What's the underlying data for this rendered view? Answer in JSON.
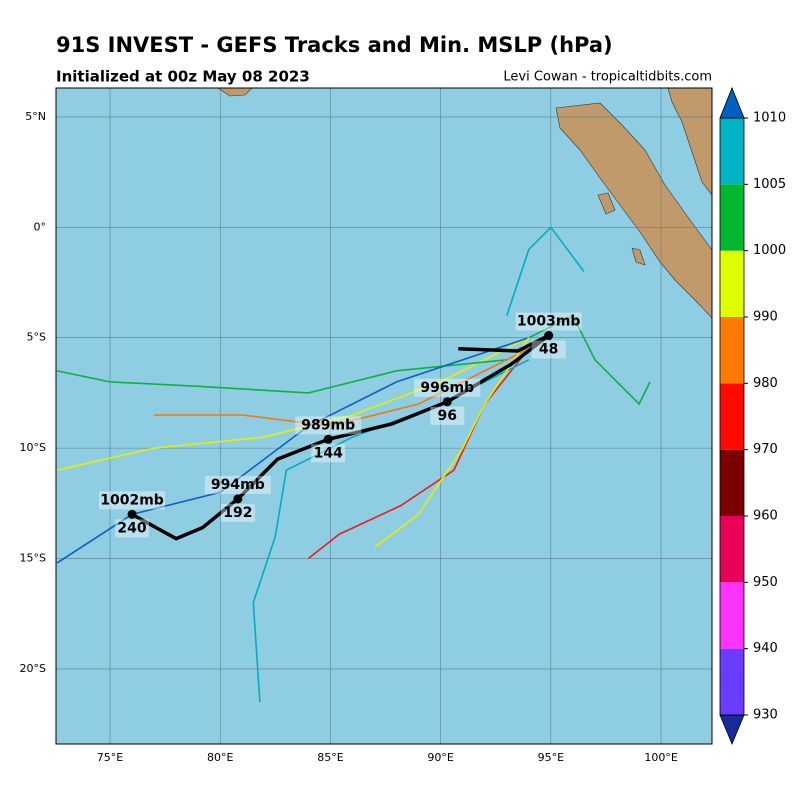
{
  "chart_data": {
    "type": "map",
    "title": "91S INVEST - GEFS Tracks and Min. MSLP (hPa)",
    "subtitle": "Initialized at 00z May 08 2023",
    "credit": "Levi Cowan - tropicaltidbits.com",
    "xlim": [
      72.55,
      102.31
    ],
    "ylim": [
      -23.4,
      6.31
    ],
    "xticks": [
      {
        "value": 75,
        "label": "75°E"
      },
      {
        "value": 80,
        "label": "80°E"
      },
      {
        "value": 85,
        "label": "85°E"
      },
      {
        "value": 90,
        "label": "90°E"
      },
      {
        "value": 95,
        "label": "95°E"
      },
      {
        "value": 100,
        "label": "100°E"
      }
    ],
    "yticks": [
      {
        "value": 5,
        "label": "5°N"
      },
      {
        "value": 0,
        "label": "0°"
      },
      {
        "value": -5,
        "label": "5°S"
      },
      {
        "value": -10,
        "label": "10°S"
      },
      {
        "value": -15,
        "label": "15°S"
      },
      {
        "value": -20,
        "label": "20°S"
      }
    ],
    "grid": true,
    "ocean_color": "#8fcde3",
    "land_color": "#c19a6b",
    "ensemble_tracks": [
      {
        "color": "#e8201a",
        "lon": [
          94,
          92,
          90.6,
          88.2,
          85.4,
          84
        ],
        "lat": [
          -5.5,
          -8,
          -11,
          -12.6,
          -13.9,
          -15
        ]
      },
      {
        "color": "#e5f000",
        "lon": [
          94,
          90,
          86,
          82,
          77,
          72.6
        ],
        "lat": [
          -5,
          -7,
          -8.5,
          -9.5,
          -10,
          -11
        ]
      },
      {
        "color": "#10b040",
        "lon": [
          93,
          88,
          84,
          79,
          75,
          72.6
        ],
        "lat": [
          -6,
          -6.5,
          -7.5,
          -7.2,
          -7,
          -6.5
        ]
      },
      {
        "color": "#00aebf",
        "lon": [
          94,
          90,
          86,
          83,
          82.5,
          81.5,
          81.8
        ],
        "lat": [
          -6,
          -8,
          -9.5,
          -11,
          -14,
          -17,
          -21.5
        ]
      },
      {
        "color": "#1060c0",
        "lon": [
          94,
          88,
          84,
          80,
          76,
          72.6
        ],
        "lat": [
          -5,
          -7,
          -9,
          -12,
          -13,
          -15.2
        ]
      },
      {
        "color": "#f07a10",
        "lon": [
          94,
          89,
          85,
          81,
          77
        ],
        "lat": [
          -5.5,
          -8,
          -9,
          -8.5,
          -8.5
        ]
      },
      {
        "color": "#10b040",
        "lon": [
          94,
          96,
          97,
          99,
          99.5
        ],
        "lat": [
          -5,
          -4,
          -6,
          -8,
          -7
        ]
      },
      {
        "color": "#e5f000",
        "lon": [
          94,
          92,
          91,
          89,
          87
        ],
        "lat": [
          -5,
          -8,
          -10,
          -13,
          -14.5
        ]
      },
      {
        "color": "#00aebf",
        "lon": [
          93,
          94,
          95,
          96.5
        ],
        "lat": [
          -4,
          -1,
          0,
          -2
        ]
      }
    ],
    "mean_track": {
      "lon": [
        90.8,
        93.5,
        94.9,
        93.2,
        90.3,
        87.8,
        84.9,
        82.6,
        80.8,
        79.2,
        78.0,
        76.0
      ],
      "lat": [
        -5.5,
        -5.6,
        -4.9,
        -6.2,
        -7.9,
        -8.9,
        -9.6,
        -10.5,
        -12.3,
        -13.6,
        -14.1,
        -13.0
      ],
      "points": [
        {
          "pressure": "1003mb",
          "hour": 48,
          "lon": 94.9,
          "lat": -4.9
        },
        {
          "pressure": "996mb",
          "hour": 96,
          "lon": 90.3,
          "lat": -7.9
        },
        {
          "pressure": "989mb",
          "hour": 144,
          "lon": 84.9,
          "lat": -9.6
        },
        {
          "pressure": "994mb",
          "hour": 192,
          "lon": 80.8,
          "lat": -12.3
        },
        {
          "pressure": "1002mb",
          "hour": 240,
          "lon": 76.0,
          "lat": -13.0
        }
      ]
    },
    "colorbar": {
      "levels": [
        930,
        940,
        950,
        960,
        970,
        980,
        990,
        1000,
        1005,
        1010
      ],
      "colors": [
        "#6a3cff",
        "#ff33ff",
        "#e8005a",
        "#7a0000",
        "#ff0a00",
        "#ff7a00",
        "#ddff00",
        "#00b830",
        "#00b4c4"
      ],
      "under_color": "#1a2a9a",
      "over_color": "#0060c0"
    }
  }
}
